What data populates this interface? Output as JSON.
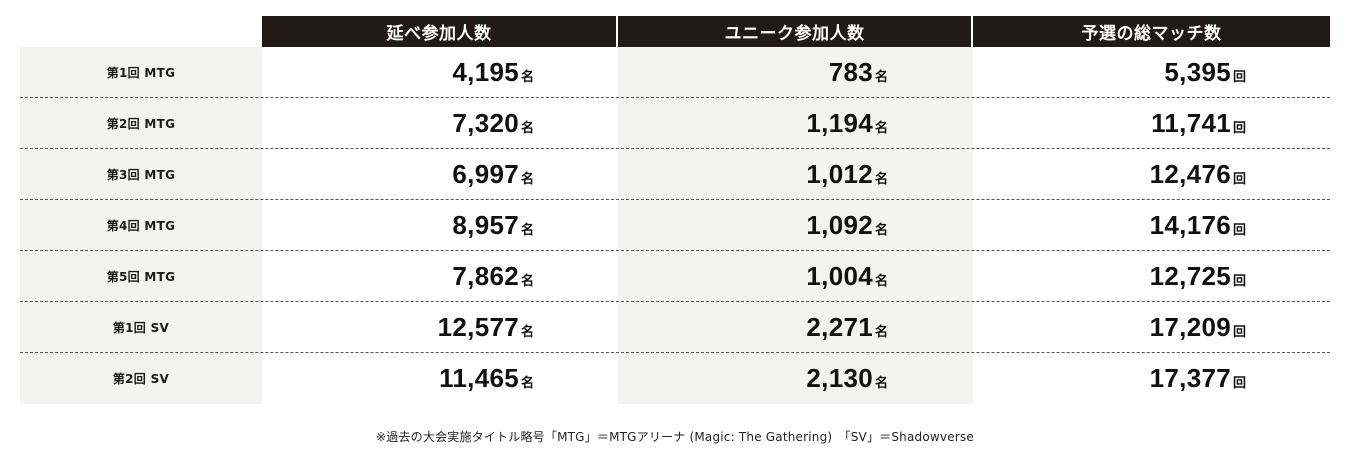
{
  "headers": {
    "col1": "延べ参加人数",
    "col2": "ユニーク参加人数",
    "col3": "予選の総マッチ数"
  },
  "rows": [
    {
      "label": "第1回 MTG",
      "total": "4,195",
      "total_unit": "名",
      "unique": "783",
      "unique_unit": "名",
      "matches": "5,395",
      "matches_unit": "回"
    },
    {
      "label": "第2回 MTG",
      "total": "7,320",
      "total_unit": "名",
      "unique": "1,194",
      "unique_unit": "名",
      "matches": "11,741",
      "matches_unit": "回"
    },
    {
      "label": "第3回 MTG",
      "total": "6,997",
      "total_unit": "名",
      "unique": "1,012",
      "unique_unit": "名",
      "matches": "12,476",
      "matches_unit": "回"
    },
    {
      "label": "第4回 MTG",
      "total": "8,957",
      "total_unit": "名",
      "unique": "1,092",
      "unique_unit": "名",
      "matches": "14,176",
      "matches_unit": "回"
    },
    {
      "label": "第5回 MTG",
      "total": "7,862",
      "total_unit": "名",
      "unique": "1,004",
      "unique_unit": "名",
      "matches": "12,725",
      "matches_unit": "回"
    },
    {
      "label": "第1回 SV",
      "total": "12,577",
      "total_unit": "名",
      "unique": "2,271",
      "unique_unit": "名",
      "matches": "17,209",
      "matches_unit": "回"
    },
    {
      "label": "第2回 SV",
      "total": "11,465",
      "total_unit": "名",
      "unique": "2,130",
      "unique_unit": "名",
      "matches": "17,377",
      "matches_unit": "回"
    }
  ],
  "footnote": "※過去の大会実施タイトル略号「MTG」＝MTGアリーナ (Magic: The Gathering)　「SV」＝Shadowverse",
  "colors": {
    "header_bg": "#211a17",
    "stripe_bg": "#f3f3f1"
  }
}
